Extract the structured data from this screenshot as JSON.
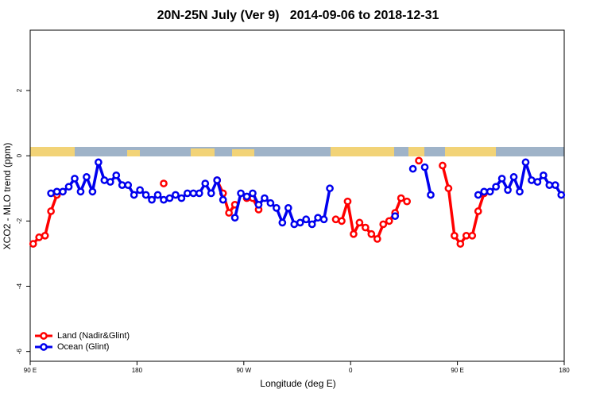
{
  "chart_data": {
    "type": "line",
    "title": "20N-25N July (Ver 9)   2014-09-06 to 2018-12-31",
    "xlabel": "Longitude (deg E)",
    "ylabel": "XCO2 - MLO trend (ppm)",
    "x": [
      92.5,
      97.5,
      102.5,
      107.5,
      112.5,
      117.5,
      122.5,
      127.5,
      132.5,
      137.5,
      142.5,
      147.5,
      152.5,
      157.5,
      162.5,
      167.5,
      172.5,
      177.5,
      182.5,
      187.5,
      192.5,
      197.5,
      202.5,
      207.5,
      212.5,
      217.5,
      222.5,
      227.5,
      232.5,
      237.5,
      242.5,
      247.5,
      252.5,
      257.5,
      262.5,
      267.5,
      272.5,
      277.5,
      282.5,
      287.5,
      292.5,
      297.5,
      302.5,
      307.5,
      312.5,
      317.5,
      322.5,
      327.5,
      332.5,
      337.5,
      342.5,
      347.5,
      352.5,
      357.5,
      362.5,
      367.5,
      372.5,
      377.5,
      382.5,
      387.5,
      392.5,
      397.5,
      402.5,
      407.5,
      412.5,
      417.5,
      422.5,
      427.5,
      432.5,
      437.5,
      442.5,
      447.5,
      452.5,
      457.5,
      462.5,
      467.5,
      472.5,
      477.5,
      482.5,
      487.5,
      492.5,
      497.5,
      502.5,
      507.5,
      512.5,
      517.5,
      522.5,
      527.5,
      532.5,
      537.5
    ],
    "series": [
      {
        "name": "Land (Nadir&Glint)",
        "color": "#ff0000",
        "values": [
          -2.7,
          -2.5,
          -2.45,
          -1.7,
          -1.2,
          null,
          null,
          null,
          null,
          null,
          null,
          null,
          null,
          null,
          null,
          null,
          null,
          null,
          null,
          null,
          null,
          null,
          -0.85,
          null,
          null,
          null,
          null,
          null,
          null,
          null,
          null,
          -0.75,
          -1.15,
          -1.75,
          -1.5,
          null,
          -1.3,
          -1.3,
          -1.65,
          null,
          null,
          null,
          null,
          null,
          null,
          null,
          null,
          null,
          null,
          null,
          null,
          -1.95,
          -2.0,
          -1.4,
          -2.4,
          -2.05,
          -2.2,
          -2.4,
          -2.55,
          -2.1,
          -2.0,
          -1.75,
          -1.3,
          -1.4,
          null,
          -0.15,
          null,
          null,
          null,
          -0.3,
          -1.0,
          -2.45,
          -2.7,
          -2.45,
          -2.45,
          -1.7,
          -1.15,
          null,
          null,
          null,
          null,
          null,
          null,
          null,
          null,
          null,
          null,
          null,
          null,
          null
        ]
      },
      {
        "name": "Ocean (Glint)",
        "color": "#0000ee",
        "values": [
          null,
          null,
          null,
          -1.15,
          -1.1,
          -1.1,
          -0.95,
          -0.7,
          -1.1,
          -0.65,
          -1.1,
          -0.2,
          -0.75,
          -0.8,
          -0.6,
          -0.9,
          -0.9,
          -1.2,
          -1.05,
          -1.2,
          -1.35,
          -1.2,
          -1.35,
          -1.3,
          -1.2,
          -1.3,
          -1.15,
          -1.15,
          -1.15,
          -0.85,
          -1.15,
          -0.75,
          -1.35,
          null,
          -1.9,
          -1.15,
          -1.25,
          -1.15,
          -1.5,
          -1.3,
          -1.45,
          -1.6,
          -2.05,
          -1.6,
          -2.1,
          -2.05,
          -1.95,
          -2.1,
          -1.9,
          -1.95,
          -1.0,
          null,
          null,
          null,
          null,
          null,
          null,
          null,
          null,
          null,
          null,
          -1.85,
          null,
          null,
          -0.4,
          null,
          -0.35,
          -1.2,
          null,
          null,
          null,
          null,
          null,
          null,
          null,
          -1.2,
          -1.1,
          -1.1,
          -0.95,
          -0.7,
          -1.05,
          -0.65,
          -1.1,
          -0.2,
          -0.75,
          -0.8,
          -0.6,
          -0.9,
          -0.9,
          -1.2
        ]
      }
    ],
    "xlim": [
      90,
      540
    ],
    "xticks": [
      {
        "value": 90,
        "label": "90 E"
      },
      180,
      {
        "value": 270,
        "label": "90 W"
      },
      {
        "value": 360,
        "label": "0"
      },
      {
        "value": 450,
        "label": "90 E"
      },
      {
        "value": 540,
        "label": "180"
      }
    ],
    "ylim": [
      -6.3,
      3.85
    ],
    "yticks": [
      -6,
      -4,
      -2,
      0,
      2
    ],
    "legend": "bottom-left",
    "grid": false
  }
}
